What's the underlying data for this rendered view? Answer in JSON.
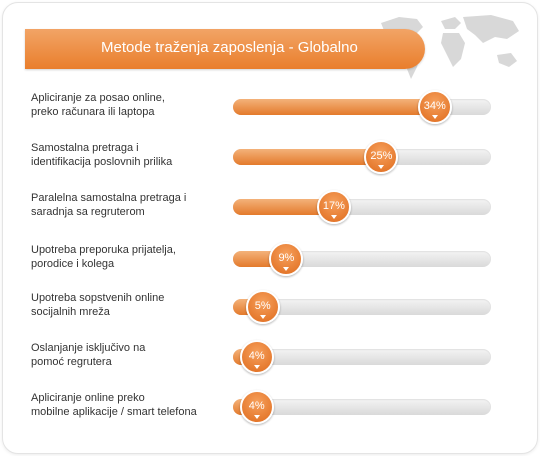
{
  "colors": {
    "accent": "#e97e2c",
    "track": "#dcdcdc",
    "text": "#333333"
  },
  "chart_data": {
    "type": "bar",
    "title": "Metode traženja zaposlenja - Globalno",
    "categories": [
      "Apliciranje za posao online,\npreko računara ili laptopa",
      "Samostalna pretraga i\nidentifikacija poslovnih prilika",
      "Paralelna samostalna pretraga i\nsaradnja sa regruterom",
      "Upotreba preporuka prijatelja,\nporodice i kolega",
      "Upotreba sopstvenih online\nsocijalnih mreža",
      "Oslanjanje isključivo na\npomoć regrutera",
      "Apliciranje online preko\nmobilne aplikacije / smart telefona"
    ],
    "values": [
      34,
      25,
      17,
      9,
      5,
      4,
      4
    ],
    "value_labels": [
      "34%",
      "25%",
      "17%",
      "9%",
      "5%",
      "4%",
      "4%"
    ],
    "ylim": [
      0,
      40
    ]
  }
}
